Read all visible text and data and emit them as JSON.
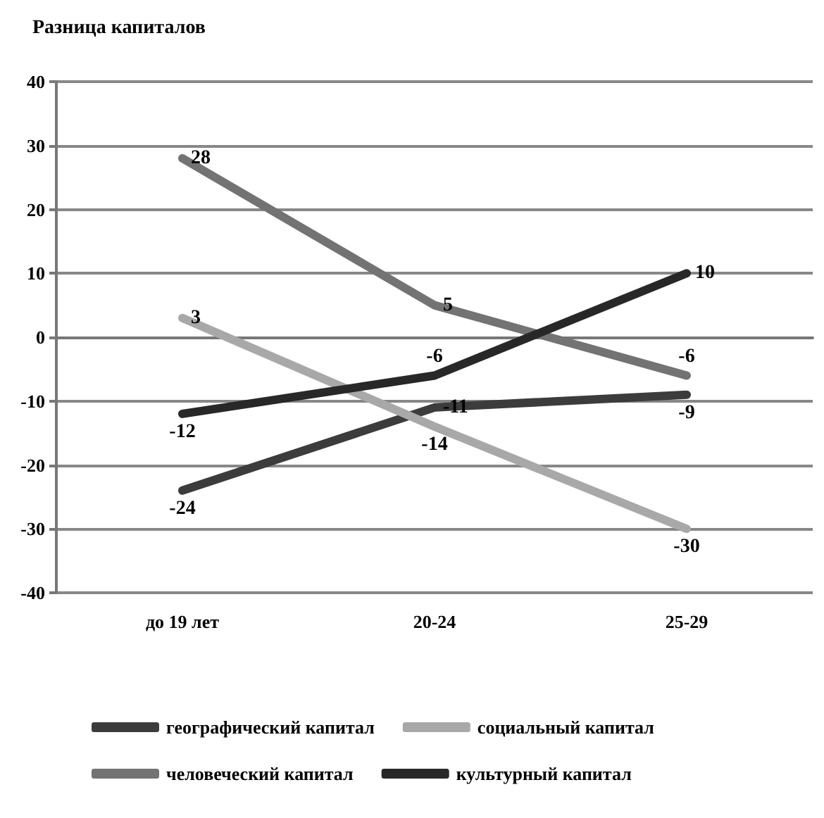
{
  "chart_data": {
    "type": "line",
    "title": "Разница капиталов",
    "categories": [
      "до 19 лет",
      "20-24",
      "25-29"
    ],
    "series": [
      {
        "name": "географический капитал",
        "color": "#3c3c3c",
        "values": [
          -24,
          -11,
          -9
        ]
      },
      {
        "name": "социальный капитал",
        "color": "#a8a8a8",
        "values": [
          3,
          -14,
          -30
        ]
      },
      {
        "name": "человеческий капитал",
        "color": "#737373",
        "values": [
          28,
          5,
          -6
        ]
      },
      {
        "name": "культурный капитал",
        "color": "#282828",
        "values": [
          -12,
          -6,
          10
        ]
      }
    ],
    "ylim": [
      -40,
      40
    ],
    "yticks": [
      -40,
      -30,
      -20,
      -10,
      0,
      10,
      20,
      30,
      40
    ],
    "grid": "y",
    "legend": "bottom",
    "marker": "none",
    "line_style": "solid",
    "data_labels": true
  }
}
